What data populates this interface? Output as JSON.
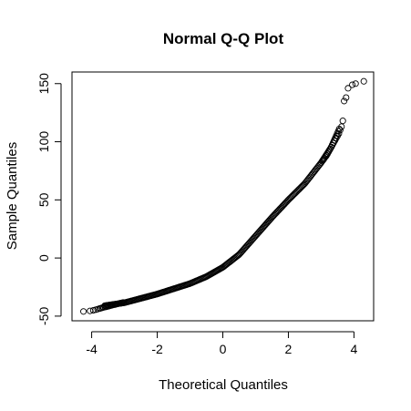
{
  "chart_data": {
    "type": "scatter",
    "title": "Normal Q-Q Plot",
    "xlabel": "Theoretical Quantiles",
    "ylabel": "Sample Quantiles",
    "xlim": [
      -4.6,
      4.6
    ],
    "ylim": [
      -54,
      160
    ],
    "xticks": [
      -4,
      -2,
      0,
      2,
      4
    ],
    "yticks": [
      -50,
      0,
      50,
      100,
      150
    ],
    "xtick_labels": [
      "-4",
      "-2",
      "0",
      "2",
      "4"
    ],
    "ytick_labels": [
      "-50",
      "0",
      "50",
      "100",
      "150"
    ],
    "grid": false,
    "curve_anchors": [
      [
        -3.6,
        -41
      ],
      [
        -3.0,
        -38.5
      ],
      [
        -2.0,
        -31
      ],
      [
        -1.0,
        -22
      ],
      [
        -0.5,
        -16
      ],
      [
        0.0,
        -8
      ],
      [
        0.5,
        3
      ],
      [
        1.0,
        19
      ],
      [
        1.5,
        35
      ],
      [
        2.0,
        50
      ],
      [
        2.5,
        64
      ],
      [
        3.0,
        82
      ],
      [
        3.3,
        95
      ],
      [
        3.55,
        111
      ]
    ],
    "series": [
      {
        "x": [
          -4.25,
          -4.05,
          -3.95,
          -3.88,
          -3.82,
          -3.76,
          -3.72,
          -3.68,
          -3.64,
          -3.6,
          -3.56,
          -3.52,
          -3.48,
          -3.44,
          -3.4,
          -3.36,
          -3.32,
          -3.28,
          -3.24,
          -3.2,
          -3.16,
          -3.12,
          -3.08,
          -3.04,
          3.05,
          3.08,
          3.1,
          3.13,
          3.16,
          3.19,
          3.22,
          3.25,
          3.28,
          3.31,
          3.34,
          3.38,
          3.42,
          3.46,
          3.5,
          3.54,
          3.58,
          3.62,
          3.66,
          3.7,
          3.76,
          3.82,
          3.95,
          4.05,
          4.3
        ],
        "y": [
          -46,
          -45.5,
          -45,
          -44.5,
          -44,
          -43.5,
          -43.2,
          -42.8,
          -42.5,
          -42.2,
          -42,
          -41.7,
          -41.4,
          -41.1,
          -40.8,
          -40.5,
          -40.2,
          -40,
          -39.7,
          -39.4,
          -39.1,
          -38.8,
          -38.6,
          -38.3,
          84,
          85,
          86,
          87,
          88,
          89.5,
          91,
          92.5,
          94,
          95.5,
          97,
          99,
          101,
          103,
          105,
          107,
          110,
          113,
          118,
          135,
          138,
          146,
          149,
          150,
          152
        ]
      }
    ]
  }
}
